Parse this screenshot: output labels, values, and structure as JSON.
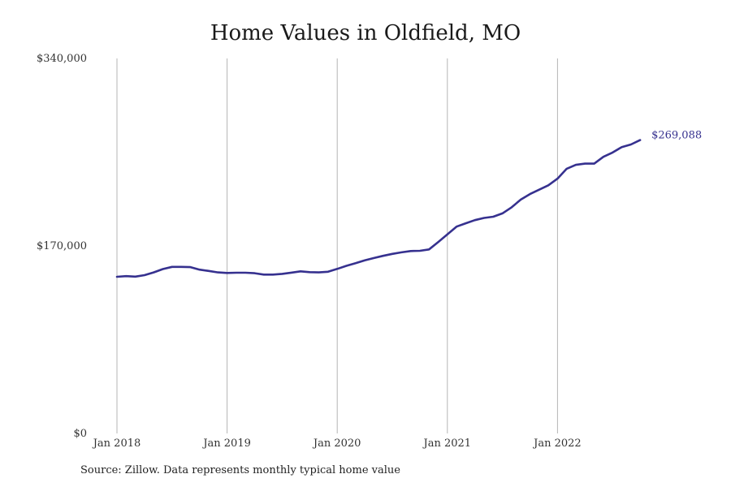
{
  "colors": {
    "line": "#36318f",
    "grid": "#b5b5b5",
    "text": "#333333"
  },
  "chart_data": {
    "type": "line",
    "title": "Home Values in Oldfield, MO",
    "xlabel": "",
    "ylabel": "",
    "x_tick_labels": [
      "Jan 2018",
      "Jan 2019",
      "Jan 2020",
      "Jan 2021",
      "Jan 2022"
    ],
    "y_tick_labels": [
      "$0",
      "$170,000",
      "$340,000"
    ],
    "y_ticks": [
      0,
      170000,
      340000
    ],
    "ylim": [
      0,
      340000
    ],
    "grid": "vertical lines at each January",
    "start": "Jan 2018",
    "frequency": "monthly",
    "series": [
      {
        "values": [
          142000,
          142600,
          142200,
          143500,
          146000,
          149000,
          151000,
          151000,
          150800,
          148500,
          147300,
          146000,
          145500,
          145700,
          145700,
          145300,
          144000,
          144000,
          144700,
          145800,
          147000,
          146200,
          146000,
          146600,
          149200,
          152000,
          154300,
          157000,
          159000,
          161000,
          162800,
          164200,
          165400,
          165600,
          166800,
          173500,
          180500,
          187500,
          190500,
          193400,
          195400,
          196500,
          199500,
          205000,
          212000,
          217000,
          221000,
          225000,
          231000,
          240000,
          243500,
          244600,
          244600,
          250800,
          254700,
          259600,
          262000,
          266000
        ]
      }
    ],
    "end_label": "$269,088"
  },
  "source": "Source: Zillow. Data represents monthly typical home value"
}
